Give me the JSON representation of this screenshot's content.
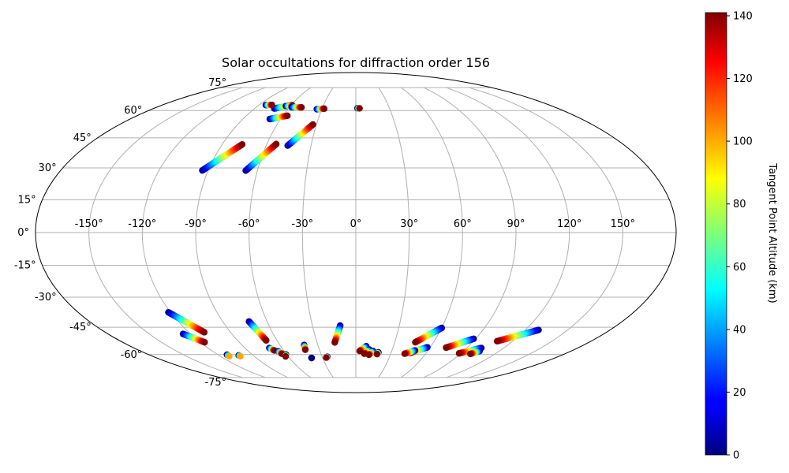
{
  "chart_data": {
    "type": "scatter",
    "title": "Solar occultations for diffraction order 156",
    "projection": "mollweide",
    "lon_ticks": [
      {
        "value": -150,
        "label": "-150°"
      },
      {
        "value": -120,
        "label": "-120°"
      },
      {
        "value": -90,
        "label": "-90°"
      },
      {
        "value": -60,
        "label": "-60°"
      },
      {
        "value": -30,
        "label": "-30°"
      },
      {
        "value": 0,
        "label": "0°"
      },
      {
        "value": 30,
        "label": "30°"
      },
      {
        "value": 60,
        "label": "60°"
      },
      {
        "value": 90,
        "label": "90°"
      },
      {
        "value": 120,
        "label": "120°"
      },
      {
        "value": 150,
        "label": "150°"
      }
    ],
    "lat_ticks": [
      {
        "value": 75,
        "label": "75°"
      },
      {
        "value": 60,
        "label": "60°"
      },
      {
        "value": 45,
        "label": "45°"
      },
      {
        "value": 30,
        "label": "30°"
      },
      {
        "value": 15,
        "label": "15°"
      },
      {
        "value": 0,
        "label": "0°"
      },
      {
        "value": -15,
        "label": "-15°"
      },
      {
        "value": -30,
        "label": "-30°"
      },
      {
        "value": -45,
        "label": "-45°"
      },
      {
        "value": -60,
        "label": "-60°"
      },
      {
        "value": -75,
        "label": "-75°"
      }
    ],
    "grid": true,
    "colorbar": {
      "label": "Tangent Point Altitude (km)",
      "colormap": "jet",
      "range": [
        0,
        141
      ],
      "ticks": [
        {
          "value": 0,
          "label": "0"
        },
        {
          "value": 20,
          "label": "20"
        },
        {
          "value": 40,
          "label": "40"
        },
        {
          "value": 60,
          "label": "60"
        },
        {
          "value": 80,
          "label": "80"
        },
        {
          "value": 100,
          "label": "100"
        },
        {
          "value": 120,
          "label": "120"
        },
        {
          "value": 140,
          "label": "140"
        }
      ]
    },
    "tracks": [
      {
        "start": [
          -93.6,
          28.8
        ],
        "end": [
          -76.5,
          41.6
        ],
        "alt_start": 0,
        "alt_end": 141
      },
      {
        "start": [
          -67.1,
          28.7
        ],
        "end": [
          -53.7,
          41.8
        ],
        "alt_start": 0,
        "alt_end": 141
      },
      {
        "start": [
          -45.6,
          41.0
        ],
        "end": [
          -32.7,
          52.1
        ],
        "alt_start": 0,
        "alt_end": 141
      },
      {
        "start": [
          -72.5,
          61.2
        ],
        "end": [
          -59.4,
          63.3
        ],
        "alt_start": 0,
        "alt_end": 141
      },
      {
        "start": [
          -68.6,
          55.1
        ],
        "end": [
          -56.3,
          57.0
        ],
        "alt_start": 0,
        "alt_end": 141
      },
      {
        "start": [
          -83.7,
          63.3
        ],
        "end": [
          -78.2,
          63.4
        ],
        "alt_start": 0,
        "alt_end": 141
      },
      {
        "start": [
          -64.2,
          62.7
        ],
        "end": [
          -58.1,
          62.8
        ],
        "alt_start": 0,
        "alt_end": 141
      },
      {
        "start": [
          -58.0,
          62.0
        ],
        "end": [
          -49.0,
          61.9
        ],
        "alt_start": 0,
        "alt_end": 141
      },
      {
        "start": [
          -34.4,
          60.8
        ],
        "end": [
          -28.1,
          61.1
        ],
        "alt_start": 0,
        "alt_end": 141
      },
      {
        "start": [
          1.5,
          61.4
        ],
        "end": [
          3.3,
          61.3
        ],
        "alt_start": 0,
        "alt_end": 141
      },
      {
        "start": [
          -121.5,
          -37.4
        ],
        "end": [
          -108.9,
          -47.6
        ],
        "alt_start": 0,
        "alt_end": 141
      },
      {
        "start": [
          -125.5,
          -48.5
        ],
        "end": [
          -116.7,
          -53.0
        ],
        "alt_start": 0,
        "alt_end": 141
      },
      {
        "start": [
          -72.2,
          -42.0
        ],
        "end": [
          -68.2,
          -52.0
        ],
        "alt_start": 0,
        "alt_end": 141
      },
      {
        "start": [
          -70.2,
          -56.2
        ],
        "end": [
          -67.8,
          -57.6
        ],
        "alt_start": 0,
        "alt_end": 141
      },
      {
        "start": [
          -65.1,
          -58.0
        ],
        "end": [
          -63.7,
          -59.5
        ],
        "alt_start": 0,
        "alt_end": 141
      },
      {
        "start": [
          -60.7,
          -60.0
        ],
        "end": [
          -62.3,
          -61.1
        ],
        "alt_start": 0,
        "alt_end": 141
      },
      {
        "start": [
          -40.8,
          -54.5
        ],
        "end": [
          -41.7,
          -57.2
        ],
        "alt_start": 0,
        "alt_end": 141
      },
      {
        "start": [
          -40.0,
          -62.0
        ],
        "end": [
          -40.0,
          -62.0
        ],
        "alt_start": 0,
        "alt_end": 0
      },
      {
        "start": [
          -25.4,
          -61.3
        ],
        "end": [
          -26.6,
          -61.8
        ],
        "alt_start": 0,
        "alt_end": 141
      },
      {
        "start": [
          -10.8,
          -44.1
        ],
        "end": [
          -16.3,
          -53.1
        ],
        "alt_start": 0,
        "alt_end": 141
      },
      {
        "start": [
          8.3,
          -55.2
        ],
        "end": [
          3.2,
          -57.9
        ],
        "alt_start": 0,
        "alt_end": 141
      },
      {
        "start": [
          11.2,
          -57.1
        ],
        "end": [
          7.3,
          -59.5
        ],
        "alt_start": 0,
        "alt_end": 141
      },
      {
        "start": [
          14.3,
          -57.9
        ],
        "end": [
          11.4,
          -60.1
        ],
        "alt_start": 0,
        "alt_end": 141
      },
      {
        "start": [
          19.1,
          -58.7
        ],
        "end": [
          18.3,
          -59.7
        ],
        "alt_start": 0,
        "alt_end": 141
      },
      {
        "start": [
          60.1,
          -45.3
        ],
        "end": [
          45.9,
          -53.0
        ],
        "alt_start": 0,
        "alt_end": 141
      },
      {
        "start": [
          57.6,
          -55.8
        ],
        "end": [
          46.3,
          -59.1
        ],
        "alt_start": 0,
        "alt_end": 141
      },
      {
        "start": [
          49.1,
          -57.6
        ],
        "end": [
          42.0,
          -59.5
        ],
        "alt_start": 0,
        "alt_end": 141
      },
      {
        "start": [
          88.5,
          -51.1
        ],
        "end": [
          73.0,
          -56.0
        ],
        "alt_start": 0,
        "alt_end": 141
      },
      {
        "start": [
          101.8,
          -56.2
        ],
        "end": [
          88.5,
          -59.3
        ],
        "alt_start": 0,
        "alt_end": 141
      },
      {
        "start": [
          103.5,
          -58.0
        ],
        "end": [
          98.7,
          -59.6
        ],
        "alt_start": 0,
        "alt_end": 141
      },
      {
        "start": [
          129.4,
          -46.4
        ],
        "end": [
          108.1,
          -52.4
        ],
        "alt_start": 0,
        "alt_end": 141
      },
      {
        "start": [
          -112.1,
          -60.1
        ],
        "end": [
          -112.1,
          -61.0
        ],
        "alt_start": 0,
        "alt_end": 100
      },
      {
        "start": [
          -102.7,
          -60.5
        ],
        "end": [
          -102.3,
          -61.0
        ],
        "alt_start": 0,
        "alt_end": 100
      }
    ]
  }
}
